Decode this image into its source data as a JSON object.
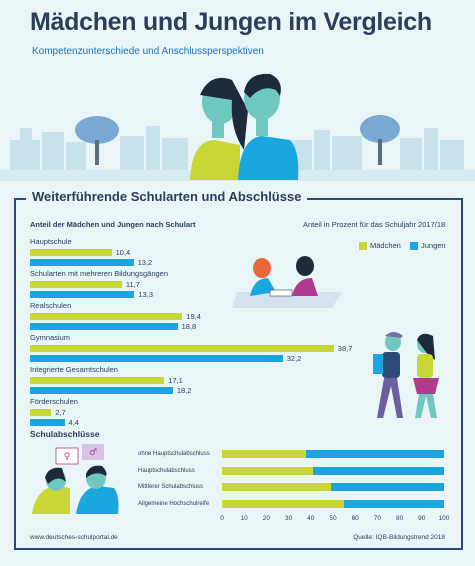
{
  "header": {
    "title": "Mädchen und Jungen im Vergleich",
    "subtitle": "Kompetenzunterschiede und Anschlussperspektiven"
  },
  "section": {
    "heading": "Weiterführende Schularten und Abschlüsse"
  },
  "colors": {
    "maedchen": "#c8d636",
    "jungen": "#1aa7df",
    "frame": "#2c4a78",
    "text": "#2c3e5a"
  },
  "chart_data": [
    {
      "type": "bar",
      "orientation": "horizontal",
      "title": "Anteil der Mädchen und Jungen nach Schulart",
      "note": "Anteil in Prozent für das Schuljahr 2017/18",
      "legend": [
        "Mädchen",
        "Jungen"
      ],
      "legend_position": "top-right",
      "categories": [
        "Hauptschule",
        "Schularten mit mehreren Bildungsgängen",
        "Realschulen",
        "Gymnasium",
        "Integrierte Gesamtschulen",
        "Förderschulen"
      ],
      "series": [
        {
          "name": "Mädchen",
          "values": [
            10.4,
            11.7,
            19.4,
            38.7,
            17.1,
            2.7
          ],
          "labels": [
            "10,4",
            "11,7",
            "19,4",
            "38,7",
            "17,1",
            "2,7"
          ]
        },
        {
          "name": "Jungen",
          "values": [
            13.2,
            13.3,
            18.8,
            32.2,
            18.2,
            4.4
          ],
          "labels": [
            "13,2",
            "13,3",
            "18,8",
            "32,2",
            "18,2",
            "4,4"
          ]
        }
      ]
    },
    {
      "type": "bar",
      "orientation": "horizontal",
      "stacked": true,
      "title": "Schulabschlüsse",
      "categories": [
        "ohne Hauptschulabschluss",
        "Hauptschulabschluss",
        "Mittlerer Schulabschluss",
        "Allgemeine Hochschulreife"
      ],
      "series": [
        {
          "name": "Mädchen",
          "values": [
            38,
            41,
            49,
            55
          ]
        },
        {
          "name": "Jungen",
          "values": [
            62,
            59,
            51,
            45
          ]
        }
      ],
      "xlim": [
        0,
        100
      ],
      "xticks": [
        "0",
        "10",
        "20",
        "30",
        "40",
        "50",
        "60",
        "70",
        "80",
        "90",
        "100"
      ]
    }
  ],
  "footer": {
    "website": "www.deutsches-schulportal.de",
    "source": "Quelle: IQB-Bildungstrend 2018"
  }
}
